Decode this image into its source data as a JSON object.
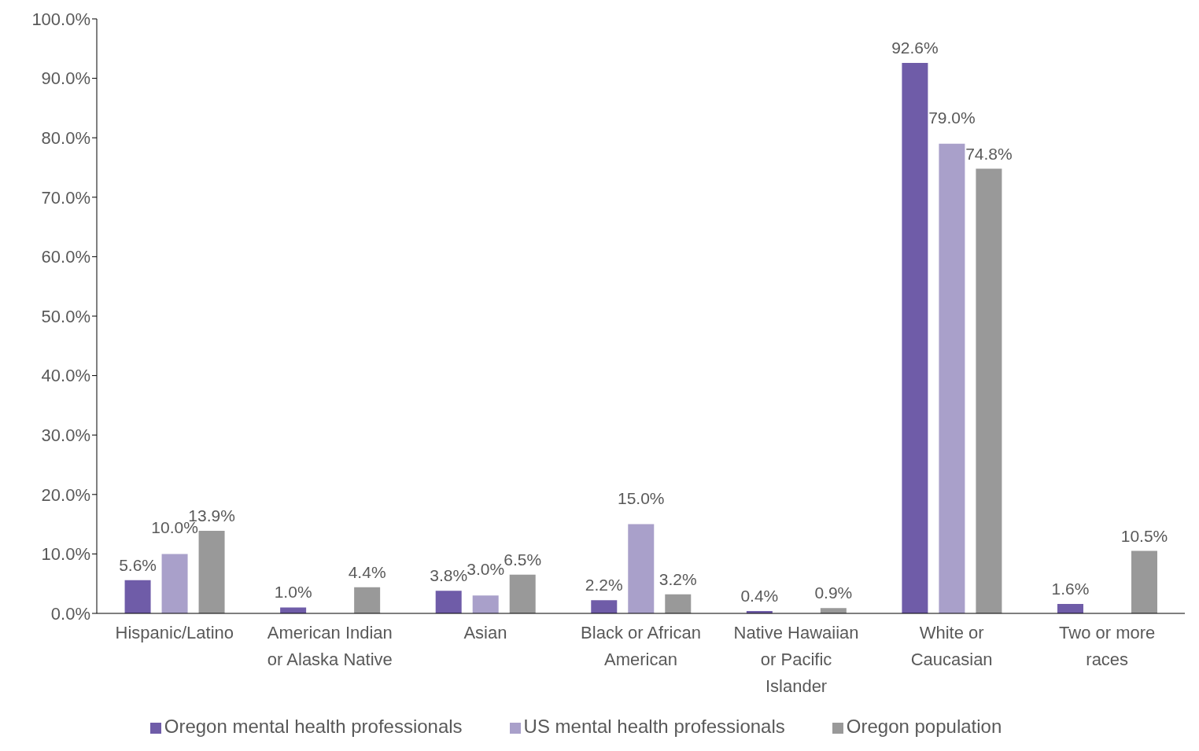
{
  "chart_data": {
    "type": "bar",
    "categories": [
      "Hispanic/Latino",
      "American Indian or Alaska Native",
      "Asian",
      "Black or African American",
      "Native Hawaiian or Pacific Islander",
      "White or Caucasian",
      "Two or more races"
    ],
    "series": [
      {
        "name": "Oregon mental health professionals",
        "color": "#6f5ca8",
        "values": [
          5.6,
          1.0,
          3.8,
          2.2,
          0.4,
          92.6,
          1.6
        ],
        "value_labels": [
          "5.6%",
          "1.0%",
          "3.8%",
          "2.2%",
          "0.4%",
          "92.6%",
          "1.6%"
        ]
      },
      {
        "name": "US mental health professionals",
        "color": "#a9a0ca",
        "values": [
          10.0,
          null,
          3.0,
          15.0,
          null,
          79.0,
          null
        ],
        "value_labels": [
          "10.0%",
          null,
          "3.0%",
          "15.0%",
          null,
          "79.0%",
          null
        ]
      },
      {
        "name": "Oregon population",
        "color": "#999999",
        "values": [
          13.9,
          4.4,
          6.5,
          3.2,
          0.9,
          74.8,
          10.5
        ],
        "value_labels": [
          "13.9%",
          "4.4%",
          "6.5%",
          "3.2%",
          "0.9%",
          "74.8%",
          "10.5%"
        ]
      }
    ],
    "ylim": [
      0,
      100
    ],
    "yticks": [
      {
        "value": 0,
        "label": "0.0%"
      },
      {
        "value": 10,
        "label": "10.0%"
      },
      {
        "value": 20,
        "label": "20.0%"
      },
      {
        "value": 30,
        "label": "30.0%"
      },
      {
        "value": 40,
        "label": "40.0%"
      },
      {
        "value": 50,
        "label": "50.0%"
      },
      {
        "value": 60,
        "label": "60.0%"
      },
      {
        "value": 70,
        "label": "70.0%"
      },
      {
        "value": 80,
        "label": "80.0%"
      },
      {
        "value": 90,
        "label": "90.0%"
      },
      {
        "value": 100,
        "label": "100.0%"
      }
    ],
    "grid": false,
    "legend": "bottom"
  }
}
